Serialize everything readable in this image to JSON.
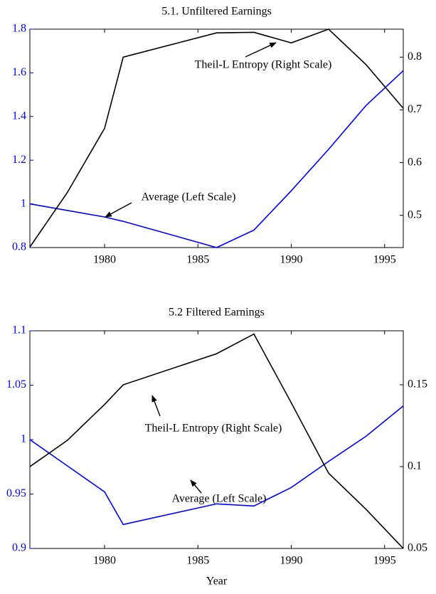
{
  "chart_data": [
    {
      "type": "line",
      "title": "5.1. Unfiltered Earnings",
      "x": [
        1976,
        1978,
        1980,
        1981,
        1986,
        1988,
        1990,
        1992,
        1994,
        1996
      ],
      "xlim": [
        1976,
        1996
      ],
      "xticks": [
        1980,
        1985,
        1990,
        1995
      ],
      "ylim": [
        0.8,
        1.8
      ],
      "yticks": [
        0.8,
        1,
        1.2,
        1.4,
        1.6,
        1.8
      ],
      "y2lim": [
        0.439,
        0.853
      ],
      "y2ticks": [
        0.5,
        0.6,
        0.7,
        0.8
      ],
      "series": [
        {
          "color": "#0000ff",
          "values": [
            1.0,
            0.97,
            0.94,
            0.92,
            0.8,
            0.88,
            1.06,
            1.25,
            1.45,
            1.61
          ]
        },
        {
          "color": "#000000",
          "axis": "y2",
          "values": [
            0.44,
            0.543,
            0.665,
            0.8,
            0.846,
            0.847,
            0.827,
            0.853,
            0.786,
            0.703
          ]
        }
      ],
      "annotations": [
        "Theil-L Entropy (Right Scale)",
        "Average (Left Scale)"
      ]
    },
    {
      "type": "line",
      "title": "5.2 Filtered Earnings",
      "xlabel": "Year",
      "x": [
        1976,
        1978,
        1980,
        1981,
        1986,
        1988,
        1990,
        1992,
        1994,
        1996
      ],
      "xlim": [
        1976,
        1996
      ],
      "xticks": [
        1980,
        1985,
        1990,
        1995
      ],
      "ylim": [
        0.9,
        1.1
      ],
      "yticks": [
        0.9,
        0.95,
        1,
        1.05,
        1.1
      ],
      "y2lim": [
        0.05,
        0.183
      ],
      "y2ticks": [
        0.05,
        0.1,
        0.15
      ],
      "series": [
        {
          "color": "#0000ff",
          "values": [
            1.0,
            0.976,
            0.952,
            0.922,
            0.941,
            0.939,
            0.956,
            0.98,
            1.003,
            1.031
          ]
        },
        {
          "color": "#000000",
          "axis": "y2",
          "values": [
            0.1,
            0.116,
            0.138,
            0.15,
            0.169,
            0.181,
            0.139,
            0.096,
            0.074,
            0.05
          ]
        }
      ],
      "annotations": [
        "Theil-L Entropy (Right Scale)",
        "Average (Left Scale)"
      ]
    }
  ]
}
